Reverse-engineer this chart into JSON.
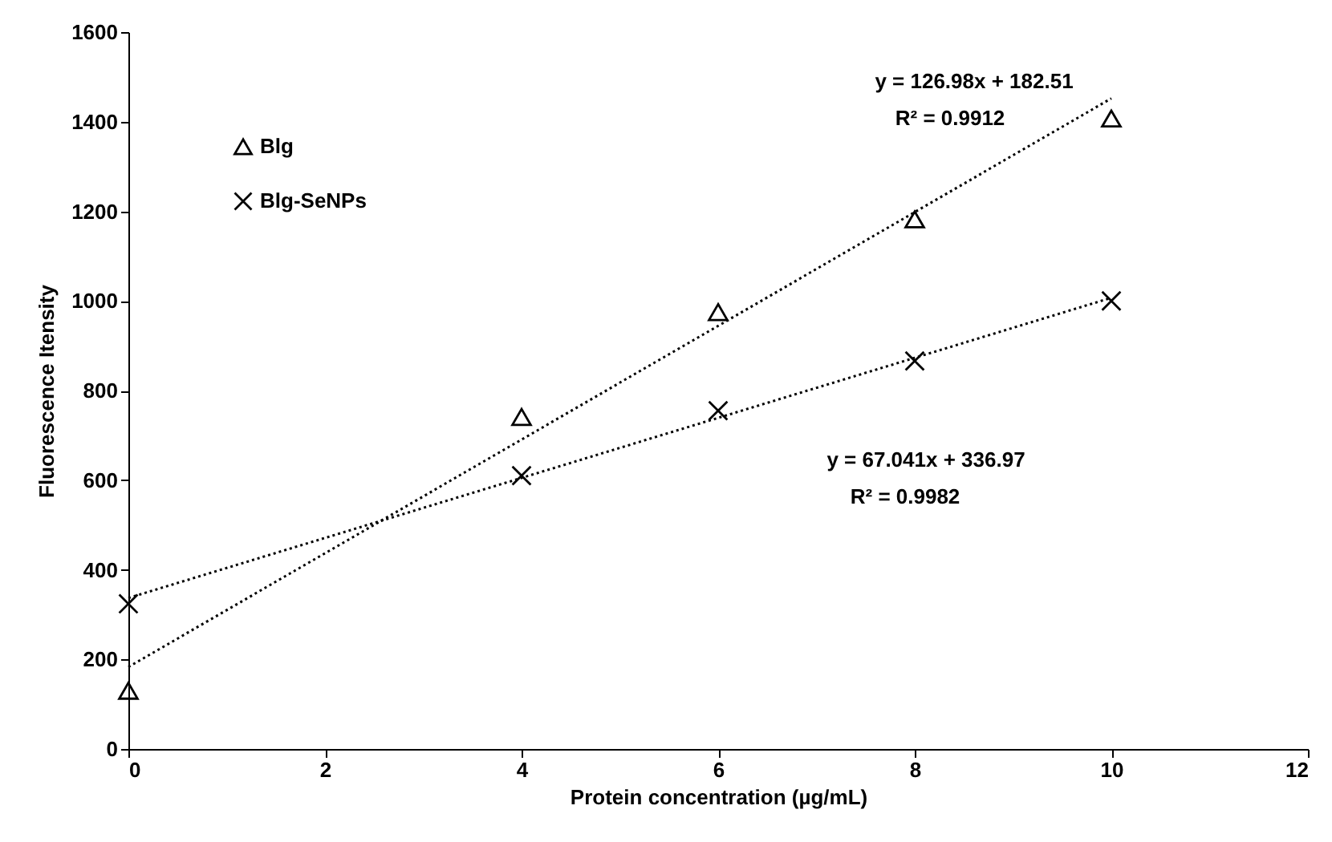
{
  "chart_data": {
    "type": "scatter",
    "xlabel": "Protein concentration (µg/mL)",
    "ylabel": "Fluorescence Itensity",
    "xlim": [
      0,
      12
    ],
    "xticks": [
      0,
      2,
      4,
      6,
      8,
      10,
      12
    ],
    "ylim": [
      0,
      1600
    ],
    "yticks": [
      0,
      200,
      400,
      600,
      800,
      1000,
      1200,
      1400,
      1600
    ],
    "grid": false,
    "legend": "top left",
    "series": [
      {
        "name": "Blg",
        "marker": "triangle",
        "color": "#000000",
        "x": [
          0,
          4,
          6,
          8,
          10
        ],
        "values": [
          130,
          741,
          975,
          1182,
          1407
        ]
      },
      {
        "name": "Blg-SeNPs",
        "marker": "cross",
        "color": "#000000",
        "x": [
          0,
          4,
          6,
          8,
          10
        ],
        "values": [
          324,
          610,
          755,
          866,
          1000
        ]
      },
      {
        "type": "line",
        "line_style": "dotted",
        "marker": "none",
        "color": "#000000",
        "x": [
          0,
          10
        ],
        "values": [
          183,
          1452
        ]
      },
      {
        "type": "line",
        "line_style": "dotted",
        "marker": "none",
        "color": "#000000",
        "x": [
          0,
          10
        ],
        "values": [
          337,
          1007
        ]
      }
    ],
    "annotations": [
      "y = 126.98x + 182.51",
      "R² = 0.9912",
      "y = 67.041x + 336.97",
      "R² = 0.9982"
    ]
  }
}
